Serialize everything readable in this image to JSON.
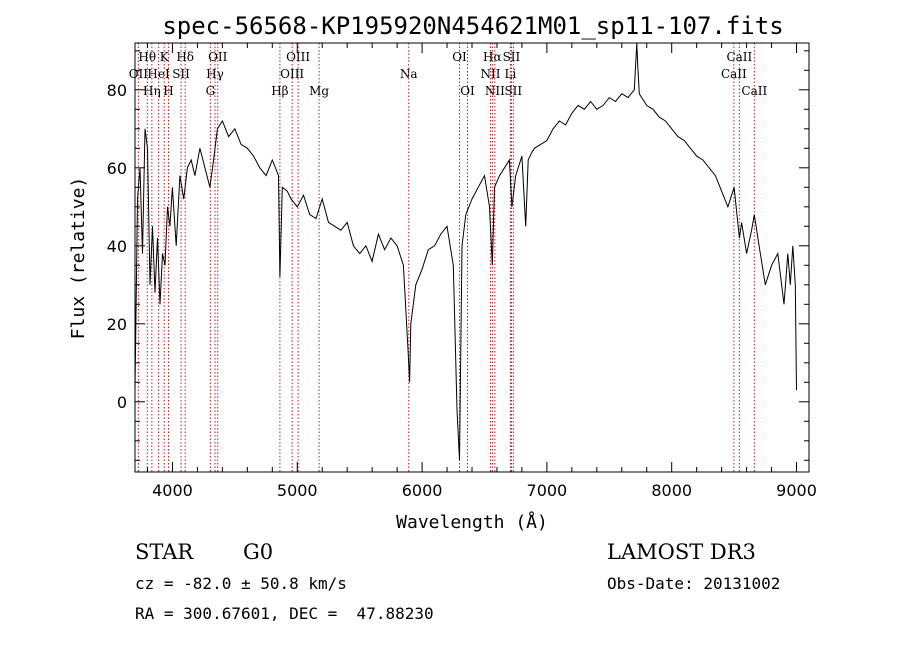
{
  "chart_data": {
    "type": "line",
    "title": "spec-56568-KP195920N454621M01_sp11-107.fits",
    "xlabel": "Wavelength (Å)",
    "ylabel": "Flux (relative)",
    "xlim": [
      3700,
      9100
    ],
    "ylim": [
      -18,
      92
    ],
    "xticks": [
      4000,
      5000,
      6000,
      7000,
      8000,
      9000
    ],
    "yticks": [
      0,
      20,
      40,
      60,
      80
    ],
    "series": [
      {
        "name": "spectrum",
        "x": [
          3700,
          3720,
          3740,
          3760,
          3780,
          3800,
          3820,
          3840,
          3860,
          3880,
          3900,
          3920,
          3940,
          3960,
          3980,
          4000,
          4030,
          4060,
          4090,
          4120,
          4150,
          4180,
          4220,
          4260,
          4300,
          4330,
          4360,
          4400,
          4450,
          4500,
          4550,
          4600,
          4650,
          4700,
          4750,
          4800,
          4850,
          4861,
          4880,
          4920,
          4950,
          5000,
          5050,
          5100,
          5150,
          5200,
          5250,
          5300,
          5350,
          5400,
          5450,
          5500,
          5550,
          5600,
          5650,
          5700,
          5750,
          5800,
          5850,
          5890,
          5900,
          5910,
          5950,
          6000,
          6050,
          6100,
          6150,
          6200,
          6250,
          6280,
          6300,
          6320,
          6350,
          6400,
          6450,
          6500,
          6540,
          6563,
          6580,
          6620,
          6660,
          6700,
          6720,
          6750,
          6800,
          6830,
          6850,
          6880,
          6900,
          6950,
          7000,
          7050,
          7100,
          7150,
          7200,
          7250,
          7300,
          7350,
          7400,
          7450,
          7500,
          7550,
          7600,
          7650,
          7700,
          7720,
          7730,
          7740,
          7760,
          7800,
          7850,
          7900,
          7950,
          8000,
          8050,
          8100,
          8150,
          8200,
          8250,
          8300,
          8350,
          8400,
          8450,
          8500,
          8542,
          8560,
          8600,
          8640,
          8662,
          8700,
          8750,
          8800,
          8850,
          8900,
          8930,
          8950,
          8970,
          8990,
          9000
        ],
        "values": [
          3,
          52,
          60,
          38,
          70,
          65,
          30,
          45,
          28,
          42,
          25,
          38,
          35,
          50,
          45,
          55,
          40,
          58,
          52,
          60,
          62,
          58,
          65,
          60,
          55,
          62,
          70,
          72,
          68,
          70,
          66,
          65,
          63,
          60,
          58,
          62,
          58,
          32,
          55,
          54,
          52,
          50,
          53,
          48,
          47,
          52,
          46,
          45,
          44,
          46,
          40,
          38,
          40,
          36,
          43,
          39,
          42,
          40,
          35,
          12,
          5,
          20,
          30,
          34,
          39,
          40,
          43,
          45,
          35,
          -2,
          -15,
          40,
          48,
          52,
          55,
          58,
          50,
          35,
          55,
          58,
          60,
          62,
          50,
          58,
          63,
          45,
          62,
          64,
          65,
          66,
          67,
          70,
          72,
          71,
          74,
          76,
          75,
          77,
          75,
          76,
          78,
          77,
          79,
          78,
          80,
          92,
          85,
          79,
          78,
          76,
          75,
          73,
          72,
          70,
          68,
          67,
          65,
          63,
          62,
          60,
          58,
          54,
          50,
          55,
          42,
          46,
          38,
          44,
          48,
          40,
          30,
          35,
          38,
          25,
          38,
          30,
          40,
          30,
          3
        ]
      }
    ],
    "spectral_lines": [
      {
        "label": "Hθ",
        "wavelength": 3798,
        "row": 1
      },
      {
        "label": "K",
        "wavelength": 3934,
        "row": 1
      },
      {
        "label": "Hδ",
        "wavelength": 4102,
        "row": 1
      },
      {
        "label": "OII",
        "wavelength": 4363,
        "row": 1
      },
      {
        "label": "OIII",
        "wavelength": 5007,
        "row": 1
      },
      {
        "label": "OI",
        "wavelength": 6300,
        "row": 1
      },
      {
        "label": "Hα",
        "wavelength": 6563,
        "row": 1
      },
      {
        "label": "SII",
        "wavelength": 6716,
        "row": 1
      },
      {
        "label": "CaII",
        "wavelength": 8542,
        "row": 1
      },
      {
        "label": "OII",
        "wavelength": 3727,
        "row": 2
      },
      {
        "label": "HeI",
        "wavelength": 3889,
        "row": 2
      },
      {
        "label": "SII",
        "wavelength": 4069,
        "row": 2
      },
      {
        "label": "Hγ",
        "wavelength": 4341,
        "row": 2
      },
      {
        "label": "OIII",
        "wavelength": 4959,
        "row": 2
      },
      {
        "label": "Na",
        "wavelength": 5893,
        "row": 2
      },
      {
        "label": "NII",
        "wavelength": 6548,
        "row": 2
      },
      {
        "label": "Li",
        "wavelength": 6708,
        "row": 2
      },
      {
        "label": "CaII",
        "wavelength": 8498,
        "row": 2
      },
      {
        "label": "Hη",
        "wavelength": 3835,
        "row": 3
      },
      {
        "label": "H",
        "wavelength": 3968,
        "row": 3
      },
      {
        "label": "G",
        "wavelength": 4304,
        "row": 3
      },
      {
        "label": "Hβ",
        "wavelength": 4861,
        "row": 3
      },
      {
        "label": "Mg",
        "wavelength": 5175,
        "row": 3
      },
      {
        "label": "OI",
        "wavelength": 6364,
        "row": 3
      },
      {
        "label": "NII",
        "wavelength": 6583,
        "row": 3
      },
      {
        "label": "SII",
        "wavelength": 6731,
        "row": 3
      },
      {
        "label": "CaII",
        "wavelength": 8662,
        "row": 3
      }
    ]
  },
  "info": {
    "object_type": "STAR",
    "spectral_class": "G0",
    "survey": "LAMOST DR3",
    "redshift": "cz = -82.0 ± 50.8 km/s",
    "obs_date": "Obs-Date: 20131002",
    "coordinates": "RA = 300.67601, DEC =  47.88230"
  },
  "colors": {
    "spectrum": "#000000",
    "line_marker": "#b22222",
    "axes": "#000000"
  }
}
